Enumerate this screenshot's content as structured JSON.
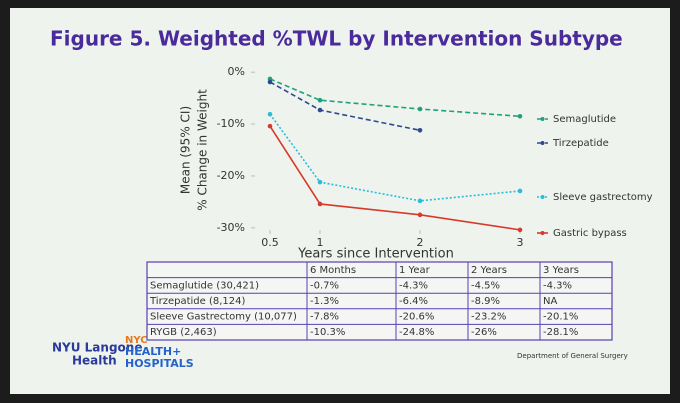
{
  "title": "Figure 5. Weighted %TWL by Intervention Subtype",
  "chart_data": {
    "type": "line",
    "x_label": "Years since Intervention",
    "y_label": [
      "Mean (95% CI)",
      "% Change in Weight"
    ],
    "x": [
      0.5,
      1,
      2,
      3
    ],
    "xlim": [
      0.35,
      3.1
    ],
    "xticks": [
      0.5,
      1,
      2,
      3
    ],
    "ylim": [
      -31,
      1
    ],
    "yticks": [
      {
        "value": 0,
        "label": "0%"
      },
      {
        "value": -10,
        "label": "-10%"
      },
      {
        "value": -20,
        "label": "-20%"
      },
      {
        "value": -30,
        "label": "-30%"
      }
    ],
    "legend": "right",
    "series": [
      {
        "name": "Semaglutide",
        "color": "#1fa07f",
        "linestyle": "dashed",
        "values": [
          -1.3,
          -5.4,
          -7.1,
          -8.5
        ]
      },
      {
        "name": "Tirzepatide",
        "color": "#2d4a8e",
        "linestyle": "dashed",
        "values": [
          -1.9,
          -7.3,
          -11.2,
          null
        ]
      },
      {
        "name": "Sleeve gastrectomy",
        "color": "#27bddb",
        "linestyle": "dotted",
        "values": [
          -8.1,
          -21.2,
          -24.8,
          -22.9
        ]
      },
      {
        "name": "Gastric bypass",
        "color": "#d63a2a",
        "linestyle": "solid",
        "values": [
          -10.4,
          -25.4,
          -27.5,
          -30.4
        ]
      }
    ]
  },
  "table": {
    "header": [
      "6 Months",
      "1 Year",
      "2 Years",
      "3 Years"
    ],
    "rows": [
      [
        "Semaglutide (30,421)",
        "-0.7%",
        "-4.3%",
        "-4.5%",
        "-4.3%"
      ],
      [
        "Tirzepatide (8,124)",
        "-1.3%",
        "-6.4%",
        "-8.9%",
        "NA"
      ],
      [
        "Sleeve Gastrectomy (10,077)",
        "-7.8%",
        "-20.6%",
        "-23.2%",
        "-20.1%"
      ],
      [
        "RYGB (2,463)",
        "-10.3%",
        "-24.8%",
        "-26%",
        "-28.1%"
      ]
    ]
  },
  "logos": {
    "nyu": [
      "NYU Langone",
      "Health"
    ],
    "nyc": [
      "NYC",
      "HEALTH+",
      "HOSPITALS"
    ]
  },
  "footer": "Department of General Surgery"
}
